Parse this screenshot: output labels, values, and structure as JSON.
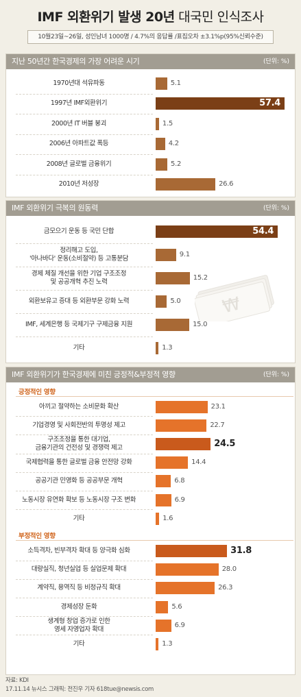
{
  "title_bold": "IMF 외환위기 발생 20년",
  "title_rest": " 대국민 인식조사",
  "subtitle": "10월23일~26일, 성인남녀 1000명 / 4.7%의 응답률 /표집오차 ±3.1%p(95%신뢰수준)",
  "colors": {
    "brown_dark": "#7b3f16",
    "brown": "#a86935",
    "orange": "#e5732a",
    "orange_dark": "#c95a1c"
  },
  "chart_data": [
    {
      "type": "bar",
      "title": "지난 50년간 한국경제의 가장 어려운 시기",
      "unit": "(단위: %)",
      "categories": [
        "1970년대 석유파동",
        "1997년 IMF외환위기",
        "2000년 IT 버블 붕괴",
        "2006년 아파트값 폭등",
        "2008년 글로벌 금융위기",
        "2010년 저성장"
      ],
      "values": [
        5.1,
        57.4,
        1.5,
        4.2,
        5.2,
        26.6
      ],
      "labels": [
        "5.1",
        "57.4",
        "1.5",
        "4.2",
        "5.2",
        "26.6"
      ],
      "highlight_index": 1,
      "xlim": [
        0,
        57.4
      ]
    },
    {
      "type": "bar",
      "title": "IMF 외환위기 극복의 원동력",
      "unit": "(단위: %)",
      "categories": [
        "금모으기 운동 등 국민 단합",
        "정리해고 도입,\n'아나바다' 운동(소비절약) 등 고통분담",
        "경제 체질 개선을 위한 기업 구조조정\n및 공공개혁 추진 노력",
        "외환보유고 증대 등 외환부문 강화 노력",
        "IMF, 세계은행 등 국제기구 구제금융 지원",
        "기타"
      ],
      "values": [
        54.4,
        9.1,
        15.2,
        5.0,
        15.0,
        1.3
      ],
      "labels": [
        "54.4",
        "9.1",
        "15.2",
        "5.0",
        "15.0",
        "1.3"
      ],
      "highlight_index": 0,
      "xlim": [
        0,
        57.4
      ]
    },
    {
      "type": "bar",
      "title": "IMF 외환위기가 한국경제에 미친 긍정적&부정적 영향",
      "unit": "(단위: %)",
      "groups": [
        {
          "name": "긍정적인 영향",
          "categories": [
            "아끼고 절약하는 소비문화 확산",
            "기업경영 및 사회전반의 투명성 제고",
            "구조조정을 통한 대기업,\n금융기관의 건전성 및 경쟁력 제고",
            "국제협력을 통한 글로벌 금융 안전망 강화",
            "공공기관 민영화 등 공공부문 개혁",
            "노동시장 유연화 확보 등 노동시장 구조 변화",
            "기타"
          ],
          "values": [
            23.1,
            22.7,
            24.5,
            14.4,
            6.8,
            6.9,
            1.6
          ],
          "labels": [
            "23.1",
            "22.7",
            "24.5",
            "14.4",
            "6.8",
            "6.9",
            "1.6"
          ],
          "highlight_index": 2
        },
        {
          "name": "부정적인 영향",
          "categories": [
            "소득격차, 빈부격차 확대 등 양극화 심화",
            "대량실직, 청년실업 등 실업문제 확대",
            "계약직, 용역직 등 비정규직 확대",
            "경제성장 둔화",
            "생계형 창업 증가로 인한\n영세 자영업자 확대",
            "기타"
          ],
          "values": [
            31.8,
            28.0,
            26.3,
            5.6,
            6.9,
            1.3
          ],
          "labels": [
            "31.8",
            "28.0",
            "26.3",
            "5.6",
            "6.9",
            "1.3"
          ],
          "highlight_index": 0
        }
      ],
      "xlim": [
        0,
        57.4
      ]
    }
  ],
  "footer": {
    "source": "자료: KDI",
    "credit": "17.11.14 뉴시스 그래픽: 전진우 기자 618tue@newsis.com"
  }
}
